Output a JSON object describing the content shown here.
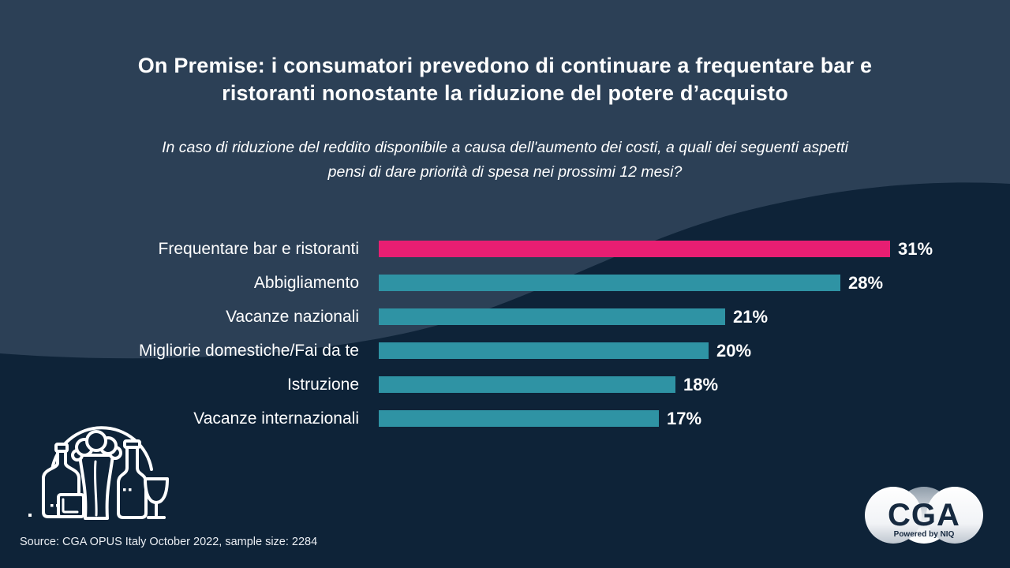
{
  "colors": {
    "background_dark": "#0E2338",
    "background_light": "#2C4056",
    "highlight_pink": "#E81E72",
    "bar_teal": "#2F93A4",
    "text_white": "#FFFFFF",
    "logo_navy": "#16293F"
  },
  "header": {
    "title": "On Premise: i consumatori prevedono di continuare a frequentare bar e ristoranti nonostante la riduzione del potere d’acquisto",
    "subtitle": "In caso di riduzione del reddito disponibile a causa dell'aumento dei costi, a quali dei seguenti aspetti pensi di dare priorità di spesa nei prossimi 12 mesi?"
  },
  "chart_data": {
    "type": "bar",
    "orientation": "horizontal",
    "title": "",
    "xlabel": "",
    "ylabel": "",
    "categories": [
      "Frequentare bar e ristoranti",
      "Abbigliamento",
      "Vacanze nazionali",
      "Migliorie domestiche/Fai da te",
      "Istruzione",
      "Vacanze internazionali"
    ],
    "values": [
      31,
      28,
      21,
      20,
      18,
      17
    ],
    "value_labels": [
      "31%",
      "28%",
      "21%",
      "20%",
      "18%",
      "17%"
    ],
    "highlight_index": 0,
    "highlight_color": "#E81E72",
    "bar_color": "#2F93A4",
    "xlim": [
      0,
      31
    ],
    "grid": false,
    "legend": false
  },
  "footer": {
    "source": "Source: CGA OPUS Italy October 2022, sample size: 2284"
  },
  "logo": {
    "name": "CGA",
    "tagline": "Powered by NIQ"
  }
}
